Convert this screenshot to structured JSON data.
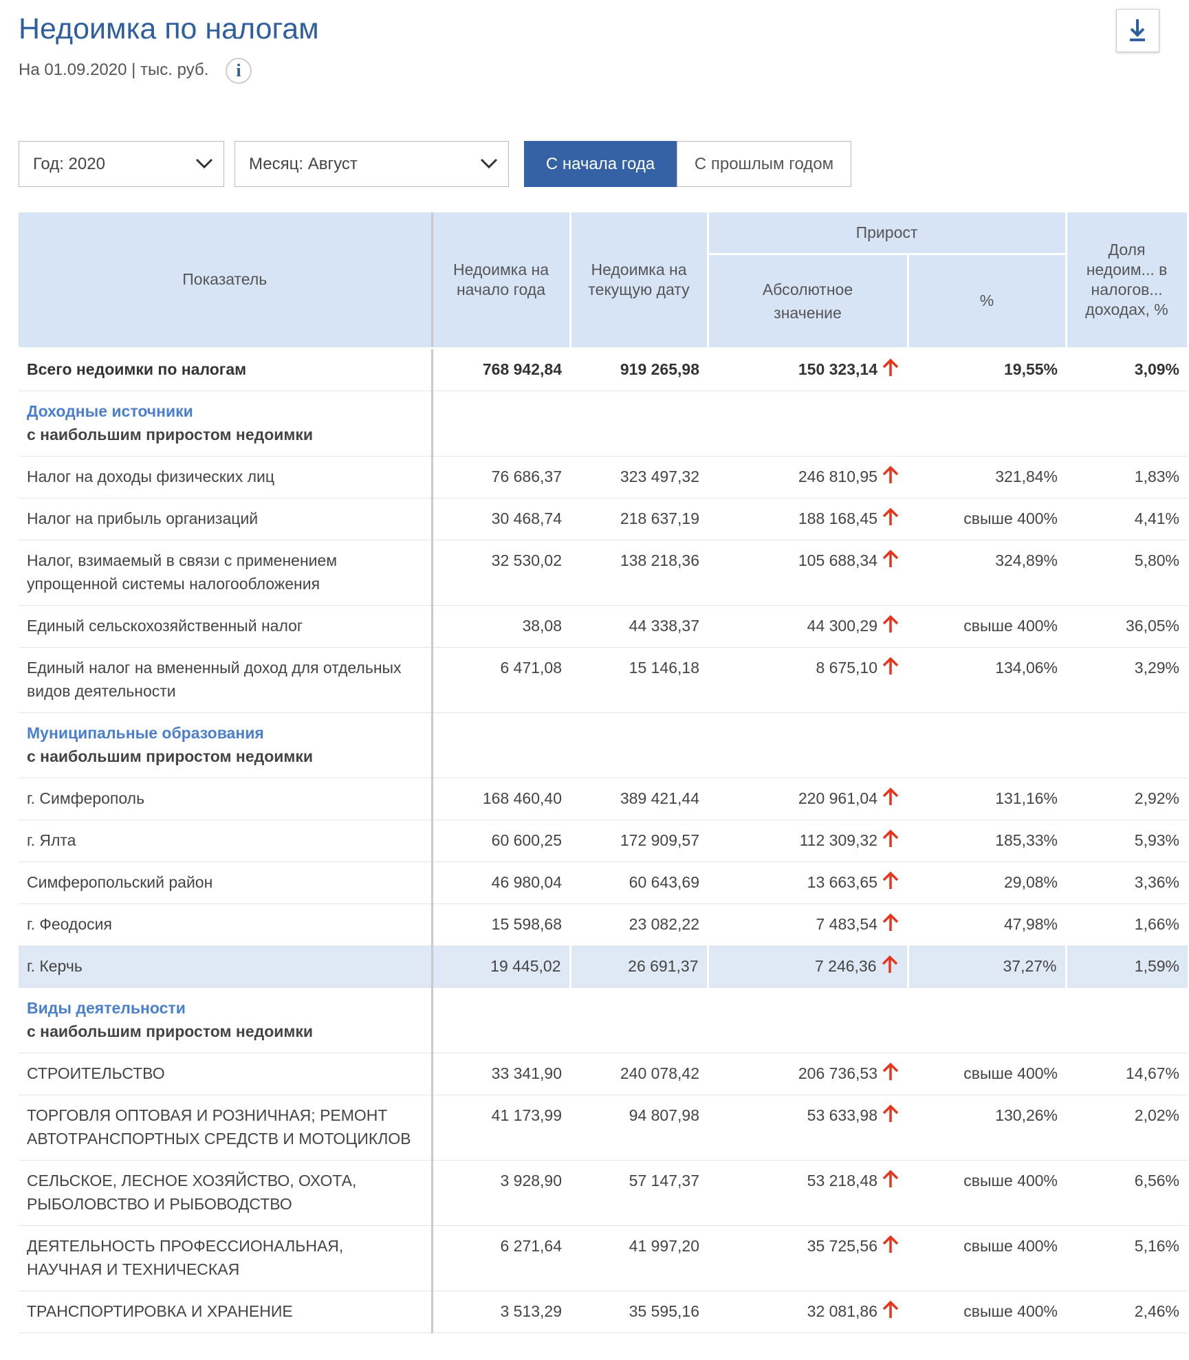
{
  "header": {
    "title": "Недоимка по налогам",
    "subtitle": "На 01.09.2020 | тыс. руб.",
    "info": "i"
  },
  "filters": {
    "year": "Год: 2020",
    "month": "Месяц: Август",
    "toggle": [
      "С начала года",
      "С прошлым годом"
    ]
  },
  "table": {
    "columns": {
      "indicator": "Показатель",
      "start": "Недоимка на начало года",
      "current": "Недоимка на текущую дату",
      "growth": "Прирост",
      "abs": "Абсолютное значение",
      "pct": "%",
      "share": "Доля недоим... в налогов... доходах, %"
    },
    "total": [
      "Всего недоимки по налогам",
      "768 942,84",
      "919 265,98",
      "150 323,14",
      "19,55%",
      "3,09%"
    ],
    "groups": [
      {
        "title": "Доходные источники",
        "subtitle": "с наибольшим приростом недоимки",
        "rows": [
          [
            "Налог на доходы физических лиц",
            "76 686,37",
            "323 497,32",
            "246 810,95",
            "321,84%",
            "1,83%"
          ],
          [
            "Налог на прибыль организаций",
            "30 468,74",
            "218 637,19",
            "188 168,45",
            "свыше 400%",
            "4,41%"
          ],
          [
            "Налог, взимаемый в связи с применением упрощенной системы налогообложения",
            "32 530,02",
            "138 218,36",
            "105 688,34",
            "324,89%",
            "5,80%"
          ],
          [
            "Единый сельскохозяйственный налог",
            "38,08",
            "44 338,37",
            "44 300,29",
            "свыше 400%",
            "36,05%"
          ],
          [
            "Единый налог на вмененный доход для отдельных видов деятельности",
            "6 471,08",
            "15 146,18",
            "8 675,10",
            "134,06%",
            "3,29%"
          ]
        ]
      },
      {
        "title": "Муниципальные образования",
        "subtitle": "с наибольшим приростом недоимки",
        "rows": [
          [
            "г. Симферополь",
            "168 460,40",
            "389 421,44",
            "220 961,04",
            "131,16%",
            "2,92%"
          ],
          [
            "г. Ялта",
            "60 600,25",
            "172 909,57",
            "112 309,32",
            "185,33%",
            "5,93%"
          ],
          [
            "Симферопольский район",
            "46 980,04",
            "60 643,69",
            "13 663,65",
            "29,08%",
            "3,36%"
          ],
          [
            "г. Феодосия",
            "15 598,68",
            "23 082,22",
            "7 483,54",
            "47,98%",
            "1,66%"
          ],
          [
            "г. Керчь",
            "19 445,02",
            "26 691,37",
            "7 246,36",
            "37,27%",
            "1,59%"
          ]
        ]
      },
      {
        "title": "Виды деятельности",
        "subtitle": "с наибольшим приростом недоимки",
        "rows": [
          [
            "СТРОИТЕЛЬСТВО",
            "33 341,90",
            "240 078,42",
            "206 736,53",
            "свыше 400%",
            "14,67%"
          ],
          [
            "ТОРГОВЛЯ ОПТОВАЯ И РОЗНИЧНАЯ; РЕМОНТ АВТОТРАНСПОРТНЫХ СРЕДСТВ И МОТОЦИКЛОВ",
            "41 173,99",
            "94 807,98",
            "53 633,98",
            "130,26%",
            "2,02%"
          ],
          [
            "СЕЛЬСКОЕ, ЛЕСНОЕ ХОЗЯЙСТВО, ОХОТА, РЫБОЛОВСТВО И РЫБОВОДСТВО",
            "3 928,90",
            "57 147,37",
            "53 218,48",
            "свыше 400%",
            "6,56%"
          ],
          [
            "ДЕЯТЕЛЬНОСТЬ ПРОФЕССИОНАЛЬНАЯ, НАУЧНАЯ И ТЕХНИЧЕСКАЯ",
            "6 271,64",
            "41 997,20",
            "35 725,56",
            "свыше 400%",
            "5,16%"
          ],
          [
            "ТРАНСПОРТИРОВКА И ХРАНЕНИЕ",
            "3 513,29",
            "35 595,16",
            "32 081,86",
            "свыше 400%",
            "2,46%"
          ]
        ]
      }
    ]
  }
}
